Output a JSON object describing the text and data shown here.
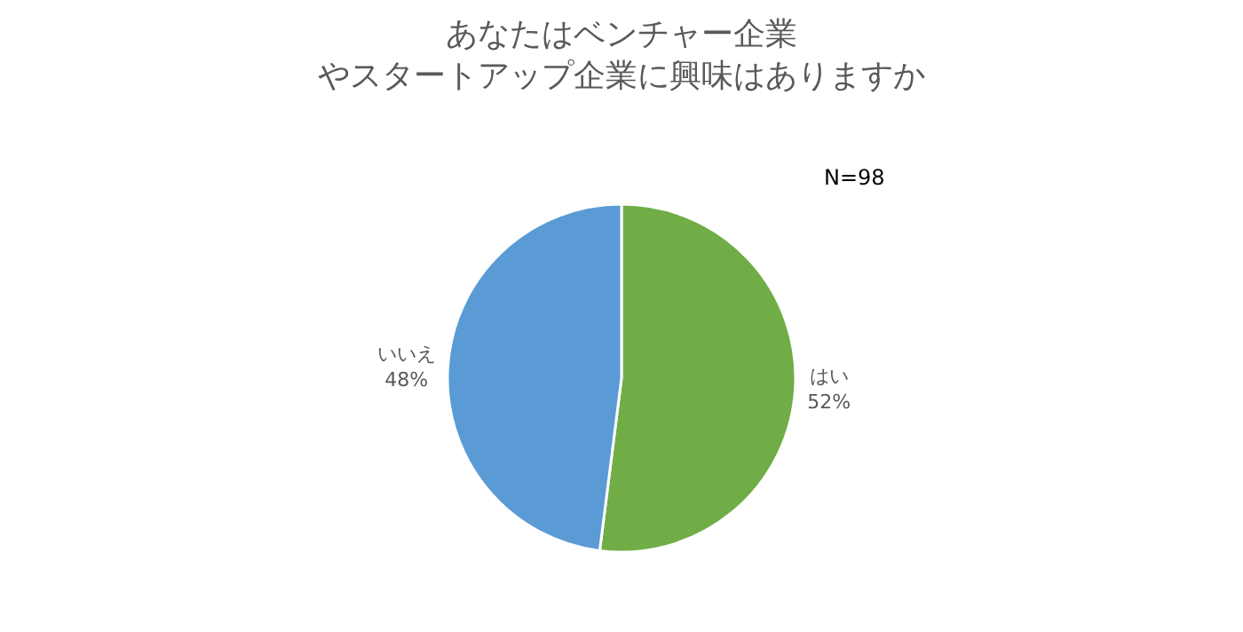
{
  "chart_data": {
    "type": "pie",
    "title": "あなたはベンチャー企業やスタートアップ企業に興味はありますか",
    "categories": [
      "はい",
      "いいえ"
    ],
    "values": [
      52,
      48
    ],
    "value_labels": [
      "52%",
      "48%"
    ],
    "colors": [
      "#70ad47",
      "#5b9bd5"
    ],
    "annotations": [
      "N=98"
    ],
    "legend": false
  }
}
